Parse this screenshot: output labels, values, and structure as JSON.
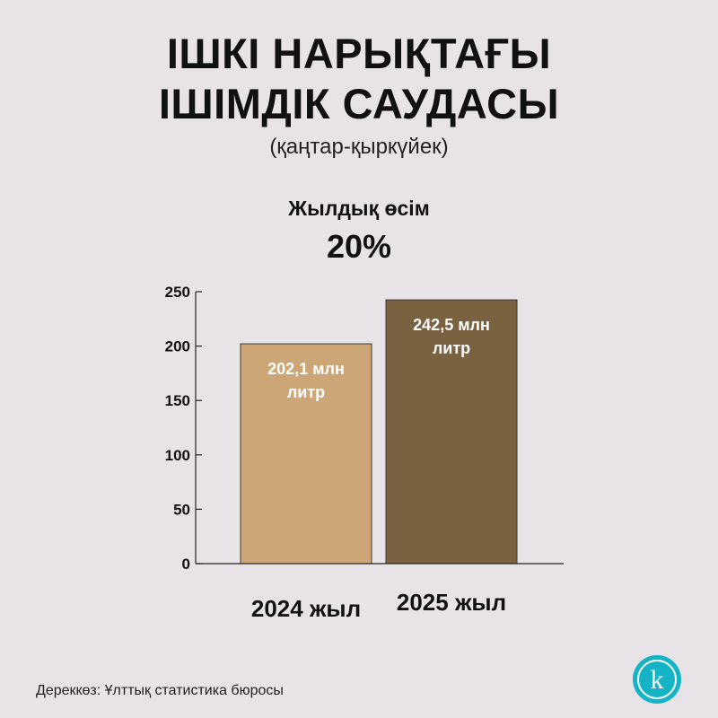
{
  "header": {
    "title_line1": "ІШКІ НАРЫҚТАҒЫ",
    "title_line2": "ІШІМДІК САУДАСЫ",
    "subtitle": "(қаңтар-қыркүйек)"
  },
  "growth": {
    "label": "Жылдық өсім",
    "value": "20%"
  },
  "chart_data": {
    "type": "bar",
    "categories": [
      "2024 жыл",
      "2025 жыл"
    ],
    "values": [
      202.1,
      242.5
    ],
    "data_labels": [
      [
        "202,1 млн",
        "литр"
      ],
      [
        "242,5 млн",
        "литр"
      ]
    ],
    "colors": [
      "#cda678",
      "#7a6240"
    ],
    "ylim": [
      0,
      250
    ],
    "yticks": [
      0,
      50,
      100,
      150,
      200,
      250
    ],
    "grid": false
  },
  "footer": {
    "source": "Дереккөз: Ұлттық статистика бюросы",
    "logo_letter": "k"
  }
}
